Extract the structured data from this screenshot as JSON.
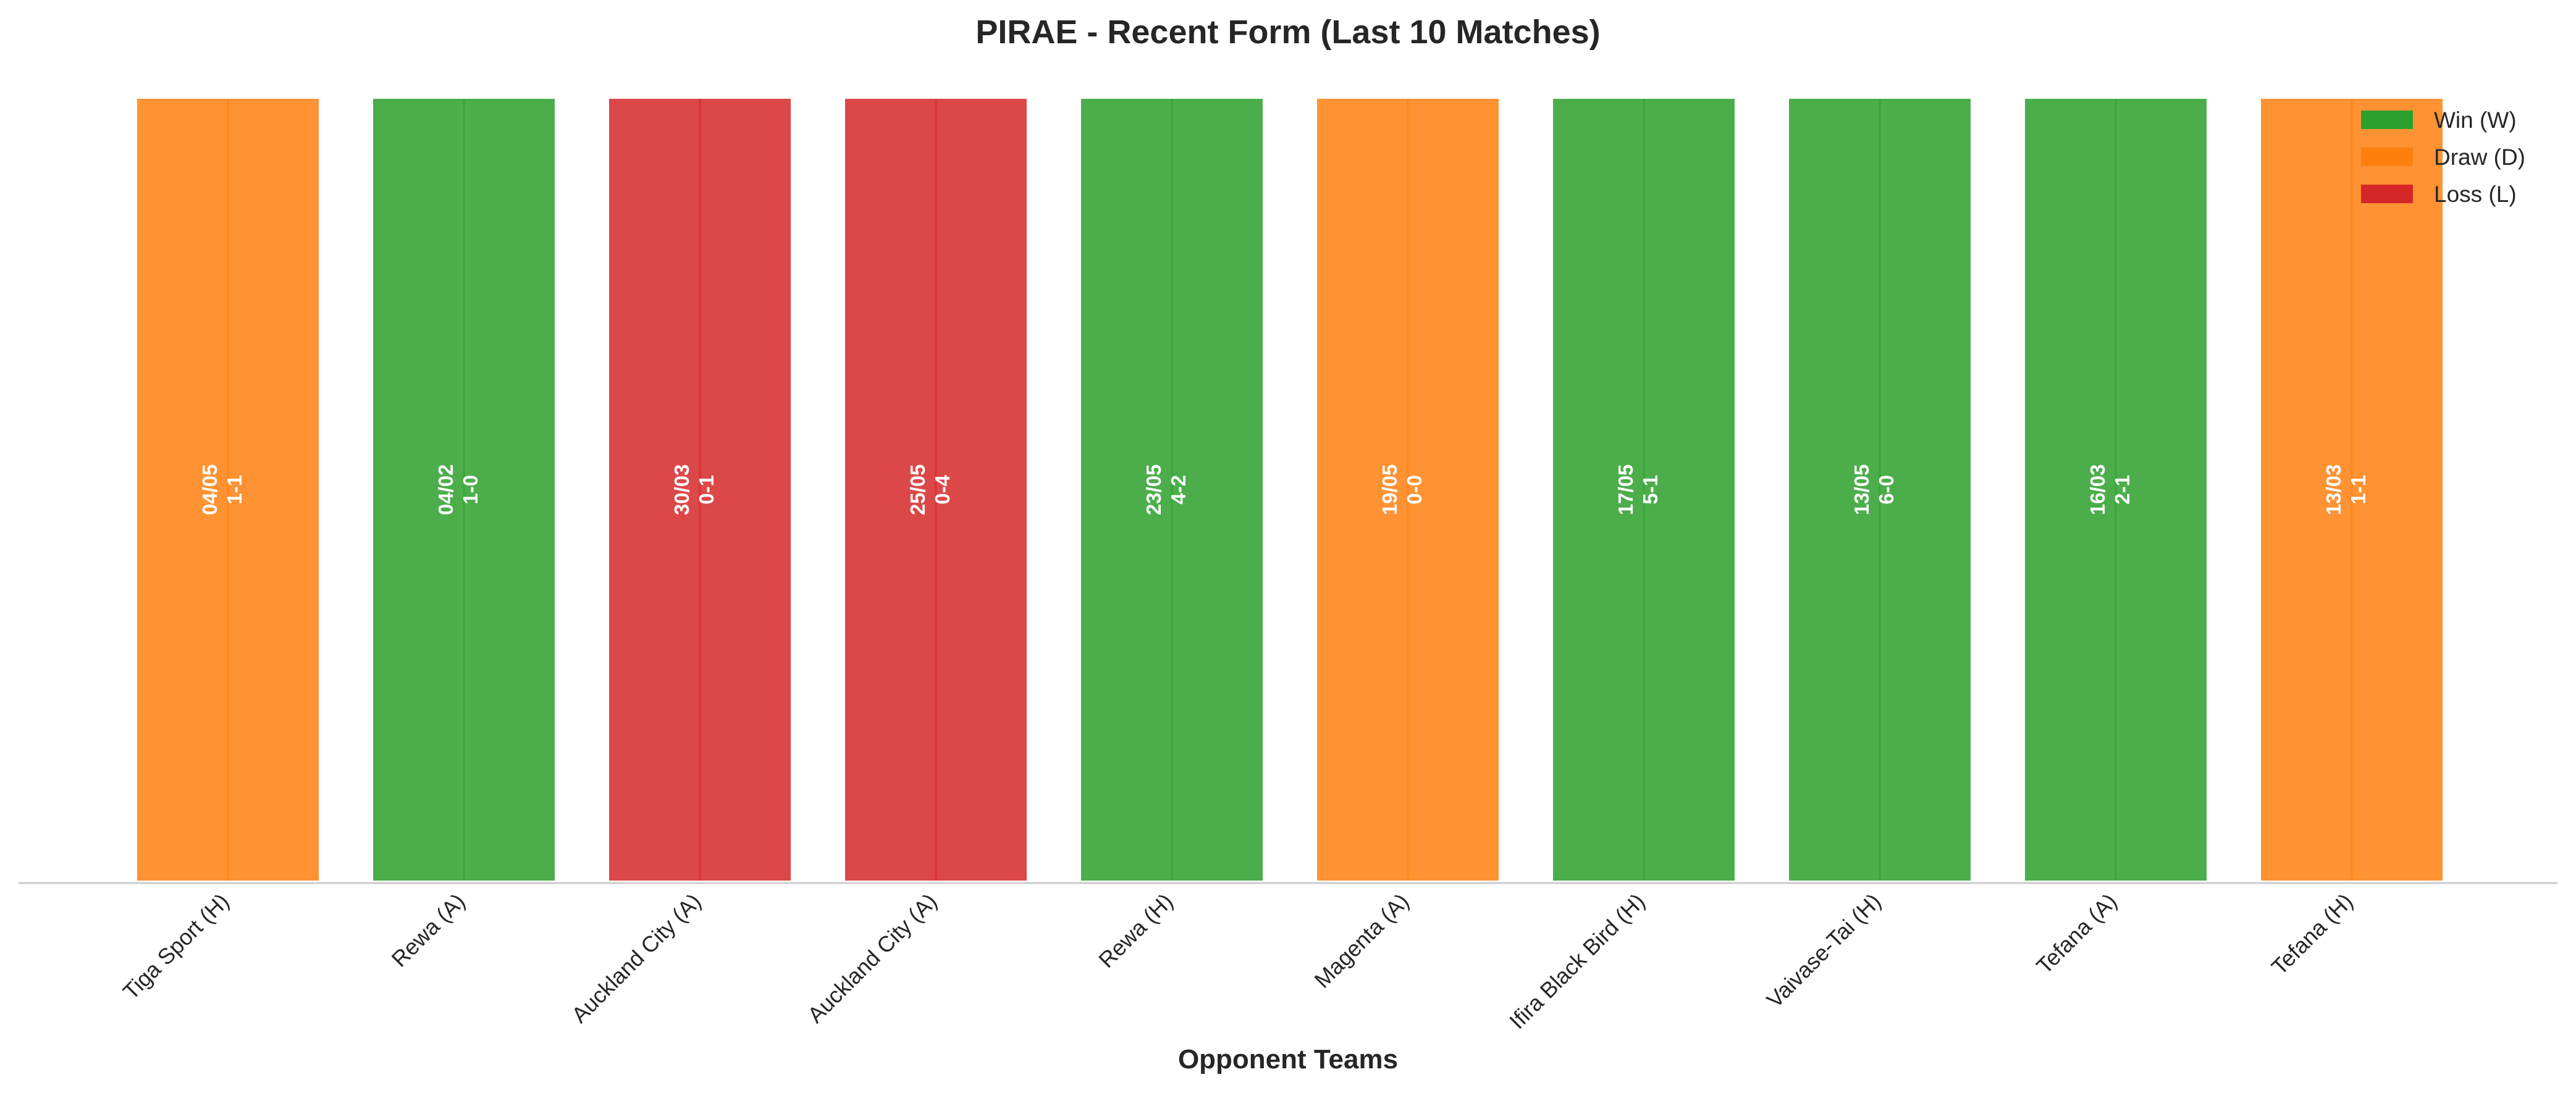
{
  "chart_data": {
    "type": "bar",
    "title": "PIRAE - Recent Form (Last 10 Matches)",
    "xlabel": "Opponent Teams",
    "ylabel": "",
    "ylim": [
      0,
      1
    ],
    "grid": false,
    "legend_position": "top-right",
    "legend": [
      {
        "key": "W",
        "label": "Win (W)",
        "color": "#2ca02c"
      },
      {
        "key": "D",
        "label": "Draw (D)",
        "color": "#ff7f0e"
      },
      {
        "key": "L",
        "label": "Loss (L)",
        "color": "#d62728"
      }
    ],
    "categories": [
      "Tiga Sport (H)",
      "Rewa (A)",
      "Auckland City (A)",
      "Auckland City (A)",
      "Rewa (H)",
      "Magenta (A)",
      "Ifira Black Bird (H)",
      "Vaivase-Tai (H)",
      "Tefana (A)",
      "Tefana (H)"
    ],
    "values": [
      1,
      1,
      1,
      1,
      1,
      1,
      1,
      1,
      1,
      1
    ],
    "results": [
      "D",
      "W",
      "L",
      "L",
      "W",
      "D",
      "W",
      "W",
      "W",
      "D"
    ],
    "dates": [
      "04/05",
      "04/02",
      "30/03",
      "25/05",
      "23/05",
      "19/05",
      "17/05",
      "13/05",
      "16/03",
      "13/03"
    ],
    "scores": [
      "1-1",
      "1-0",
      "0-1",
      "0-4",
      "4-2",
      "0-0",
      "5-1",
      "6-0",
      "2-1",
      "1-1"
    ]
  }
}
